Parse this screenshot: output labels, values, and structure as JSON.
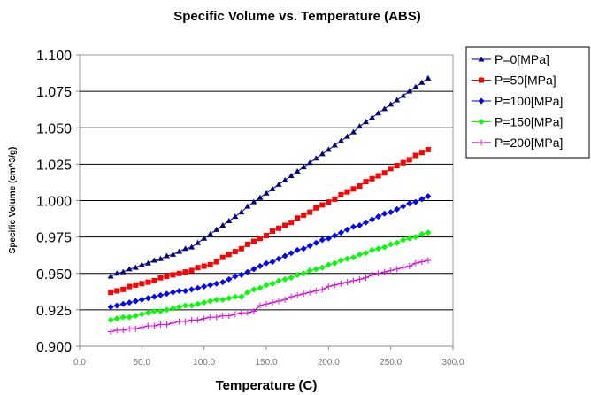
{
  "chart_data": {
    "type": "line",
    "title": "Specific Volume vs. Temperature (ABS)",
    "xlabel": "Temperature (C)",
    "ylabel": "Specific Volume (cm^3/g)",
    "xlim": [
      0,
      300
    ],
    "ylim": [
      0.9,
      1.1
    ],
    "xticks": [
      "0.0",
      "50.0",
      "100.0",
      "150.0",
      "200.0",
      "250.0",
      "300.0"
    ],
    "yticks": [
      "0.900",
      "0.925",
      "0.950",
      "0.975",
      "1.000",
      "1.025",
      "1.050",
      "1.075",
      "1.100"
    ],
    "grid": "horizontal",
    "legend_position": "right",
    "x": [
      25,
      30,
      35,
      40,
      45,
      50,
      55,
      60,
      65,
      70,
      75,
      80,
      85,
      90,
      95,
      100,
      105,
      110,
      115,
      120,
      125,
      130,
      135,
      140,
      145,
      150,
      155,
      160,
      165,
      170,
      175,
      180,
      185,
      190,
      195,
      200,
      205,
      210,
      215,
      220,
      225,
      230,
      235,
      240,
      245,
      250,
      255,
      260,
      265,
      270,
      275,
      280
    ],
    "series": [
      {
        "name": "P=0[MPa]",
        "color": "#000080",
        "marker": "triangle",
        "values": [
          0.948,
          0.95,
          0.951,
          0.953,
          0.954,
          0.956,
          0.957,
          0.959,
          0.96,
          0.962,
          0.963,
          0.965,
          0.967,
          0.968,
          0.971,
          0.974,
          0.977,
          0.98,
          0.983,
          0.986,
          0.989,
          0.992,
          0.996,
          0.999,
          1.002,
          1.005,
          1.008,
          1.011,
          1.014,
          1.017,
          1.02,
          1.023,
          1.026,
          1.029,
          1.032,
          1.035,
          1.038,
          1.041,
          1.044,
          1.047,
          1.051,
          1.054,
          1.057,
          1.06,
          1.063,
          1.066,
          1.069,
          1.072,
          1.075,
          1.078,
          1.081,
          1.084
        ]
      },
      {
        "name": "P=50[MPa]",
        "color": "#ff0000",
        "marker": "square",
        "values": [
          0.937,
          0.938,
          0.939,
          0.941,
          0.942,
          0.943,
          0.944,
          0.945,
          0.947,
          0.948,
          0.949,
          0.95,
          0.951,
          0.952,
          0.954,
          0.955,
          0.956,
          0.958,
          0.961,
          0.963,
          0.965,
          0.967,
          0.97,
          0.972,
          0.974,
          0.976,
          0.979,
          0.981,
          0.983,
          0.985,
          0.988,
          0.99,
          0.992,
          0.995,
          0.997,
          0.999,
          1.001,
          1.004,
          1.006,
          1.008,
          1.01,
          1.013,
          1.015,
          1.017,
          1.019,
          1.022,
          1.024,
          1.026,
          1.028,
          1.031,
          1.033,
          1.035
        ]
      },
      {
        "name": "P=100[MPa]",
        "color": "#0000ff",
        "marker": "diamond",
        "values": [
          0.927,
          0.928,
          0.929,
          0.93,
          0.931,
          0.932,
          0.933,
          0.934,
          0.935,
          0.936,
          0.937,
          0.938,
          0.938,
          0.939,
          0.94,
          0.941,
          0.942,
          0.943,
          0.944,
          0.946,
          0.948,
          0.949,
          0.951,
          0.953,
          0.955,
          0.957,
          0.958,
          0.96,
          0.962,
          0.964,
          0.966,
          0.967,
          0.969,
          0.971,
          0.973,
          0.974,
          0.976,
          0.978,
          0.98,
          0.982,
          0.983,
          0.985,
          0.987,
          0.989,
          0.991,
          0.992,
          0.994,
          0.996,
          0.998,
          0.999,
          1.001,
          1.003
        ]
      },
      {
        "name": "P=150[MPa]",
        "color": "#00ff00",
        "marker": "diamond",
        "values": [
          0.918,
          0.919,
          0.92,
          0.92,
          0.921,
          0.922,
          0.923,
          0.924,
          0.924,
          0.925,
          0.926,
          0.927,
          0.928,
          0.928,
          0.929,
          0.93,
          0.931,
          0.932,
          0.932,
          0.933,
          0.934,
          0.934,
          0.937,
          0.939,
          0.94,
          0.942,
          0.943,
          0.945,
          0.946,
          0.947,
          0.949,
          0.95,
          0.952,
          0.953,
          0.954,
          0.956,
          0.957,
          0.959,
          0.96,
          0.961,
          0.963,
          0.964,
          0.966,
          0.967,
          0.968,
          0.97,
          0.971,
          0.973,
          0.974,
          0.975,
          0.977,
          0.978
        ]
      },
      {
        "name": "P=200[MPa]",
        "color": "#800080",
        "marker_color": "#ff00ff",
        "marker": "plus",
        "values": [
          0.91,
          0.911,
          0.911,
          0.912,
          0.912,
          0.913,
          0.914,
          0.914,
          0.915,
          0.915,
          0.916,
          0.917,
          0.917,
          0.918,
          0.918,
          0.919,
          0.92,
          0.92,
          0.921,
          0.921,
          0.922,
          0.923,
          0.923,
          0.924,
          0.928,
          0.929,
          0.93,
          0.931,
          0.932,
          0.934,
          0.935,
          0.936,
          0.937,
          0.938,
          0.939,
          0.941,
          0.942,
          0.943,
          0.944,
          0.945,
          0.946,
          0.947,
          0.949,
          0.95,
          0.951,
          0.952,
          0.953,
          0.954,
          0.955,
          0.957,
          0.958,
          0.959
        ]
      }
    ]
  }
}
